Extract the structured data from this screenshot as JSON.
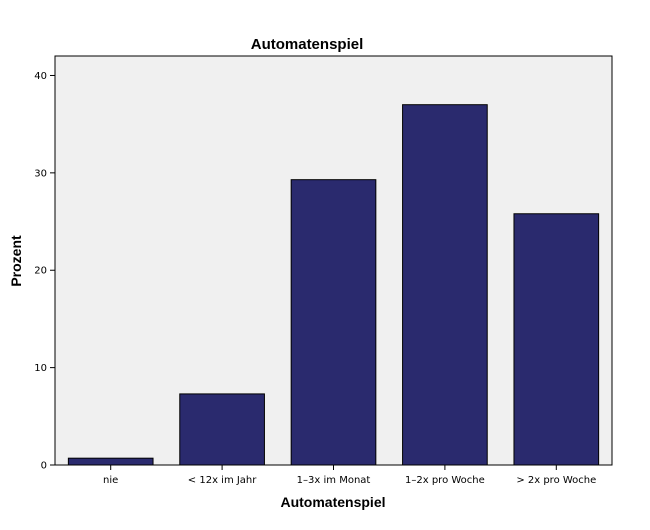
{
  "chart_data": {
    "type": "bar",
    "title": "Automatenspiel",
    "xlabel": "Automatenspiel",
    "ylabel": "Prozent",
    "categories": [
      "nie",
      "< 12x im Jahr",
      "1–3x im Monat",
      "1–2x pro Woche",
      "> 2x pro Woche"
    ],
    "values": [
      0.7,
      7.3,
      29.3,
      37.0,
      25.8
    ],
    "ylim": [
      0,
      42
    ],
    "yticks": [
      0,
      10,
      20,
      30,
      40
    ],
    "grid": false,
    "bar_color": "#2a2a6e",
    "plot_background": "#f0f0f0"
  }
}
